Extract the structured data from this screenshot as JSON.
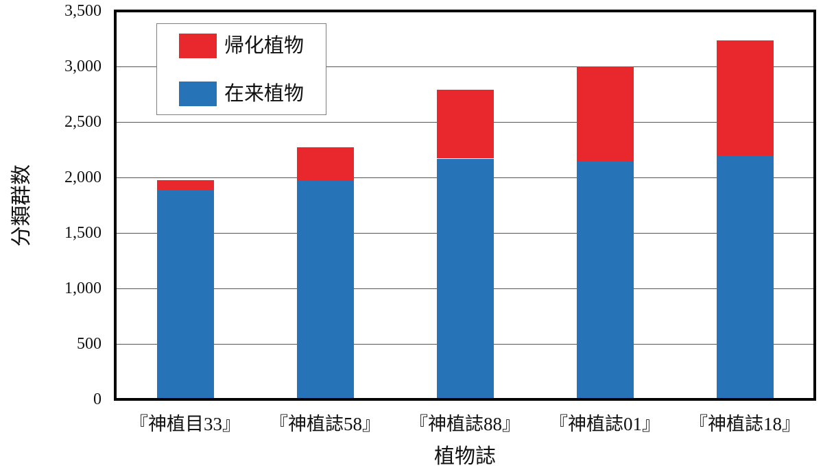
{
  "chart_data": {
    "type": "bar",
    "stacked": true,
    "categories": [
      "『神植目33』",
      "『神植誌58』",
      "『神植誌88』",
      "『神植誌01』",
      "『神植誌18』"
    ],
    "series": [
      {
        "name": "在来植物",
        "color": "#2673b8",
        "values": [
          1890,
          1970,
          2170,
          2145,
          2200
        ]
      },
      {
        "name": "帰化植物",
        "color": "#e8282d",
        "values": [
          85,
          300,
          620,
          855,
          1035
        ]
      }
    ],
    "xlabel": "植物誌",
    "ylabel": "分類群数",
    "ylim": [
      0,
      3500
    ],
    "ytick_step": 500,
    "ytick_labels": [
      "0",
      "500",
      "1,000",
      "1,500",
      "2,000",
      "2,500",
      "3,000",
      "3,500"
    ],
    "grid": true,
    "legend": {
      "position": "top-left",
      "entries": [
        {
          "label": "帰化植物",
          "color": "#e8282d"
        },
        {
          "label": "在来植物",
          "color": "#2673b8"
        }
      ]
    }
  }
}
